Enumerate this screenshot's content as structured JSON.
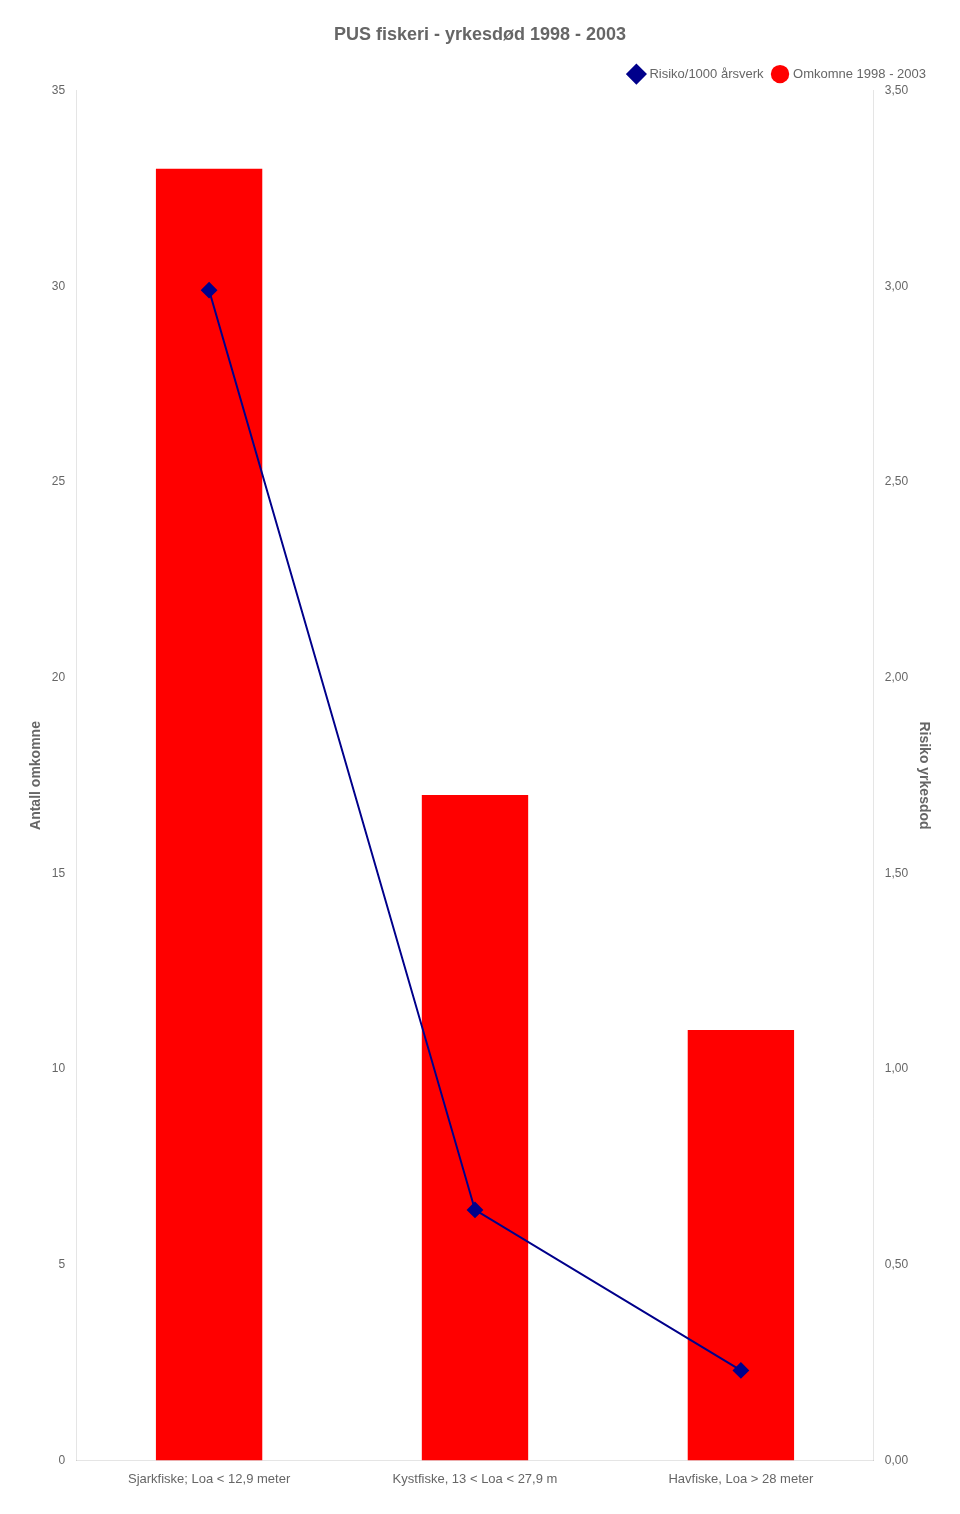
{
  "chart_data": {
    "type": "bar",
    "title": "PUS fiskeri - yrkesdød 1998 - 2003",
    "categories": [
      "Sjarkfiske; Loa < 12,9 meter",
      "Kystfiske, 13 < Loa < 27,9 m",
      "Havfiske, Loa > 28 meter"
    ],
    "series": [
      {
        "name": "Omkomne 1998 - 2003",
        "color": "#FF0000",
        "values": [
          33,
          17,
          11
        ]
      },
      {
        "name": "Risiko/1000 årsverk",
        "color": "#00008B",
        "values": [
          2.99,
          0.64,
          0.23
        ],
        "axis": "y2",
        "type": "line",
        "marker": "diamond"
      }
    ],
    "ylabel": "Antall omkomne",
    "y2label": "Risiko yrkesdod",
    "ylim": [
      0,
      35
    ],
    "yticks": [
      0,
      5,
      10,
      15,
      20,
      25,
      30,
      35
    ],
    "y2lim": [
      0,
      3.5
    ],
    "y2ticks": [
      {
        "value": 0,
        "label": "0,00"
      },
      {
        "value": 0.5,
        "label": "0,50"
      },
      {
        "value": 1,
        "label": "1,00"
      },
      {
        "value": 1.5,
        "label": "1,50"
      },
      {
        "value": 2,
        "label": "2,00"
      },
      {
        "value": 2.5,
        "label": "2,50"
      },
      {
        "value": 3,
        "label": "3,00"
      },
      {
        "value": 3.5,
        "label": "3,50"
      }
    ],
    "legend": "upper right",
    "grid": false
  }
}
